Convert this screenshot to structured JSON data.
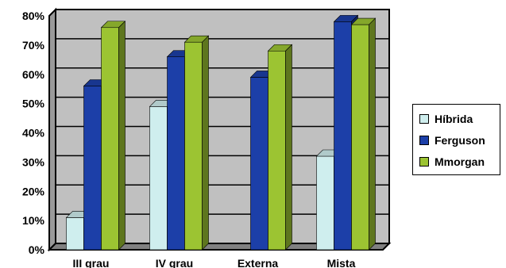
{
  "chart_data": {
    "type": "bar",
    "categories": [
      "III grau",
      "IV grau",
      "Externa",
      "Mista"
    ],
    "series": [
      {
        "name": "Híbrida",
        "values": [
          11,
          49,
          0,
          32
        ],
        "color": "#cfeeee"
      },
      {
        "name": "Ferguson",
        "values": [
          56,
          66,
          59,
          78
        ],
        "color": "#1c3fa8"
      },
      {
        "name": "Mmorgan",
        "values": [
          76,
          71,
          68,
          77
        ],
        "color": "#9cc432"
      }
    ],
    "yticks": [
      "0%",
      "10%",
      "20%",
      "30%",
      "40%",
      "50%",
      "60%",
      "70%",
      "80%"
    ],
    "ylim": [
      0,
      80
    ],
    "grid": true,
    "legend": "right",
    "plot_background": "#c0c0c0"
  }
}
